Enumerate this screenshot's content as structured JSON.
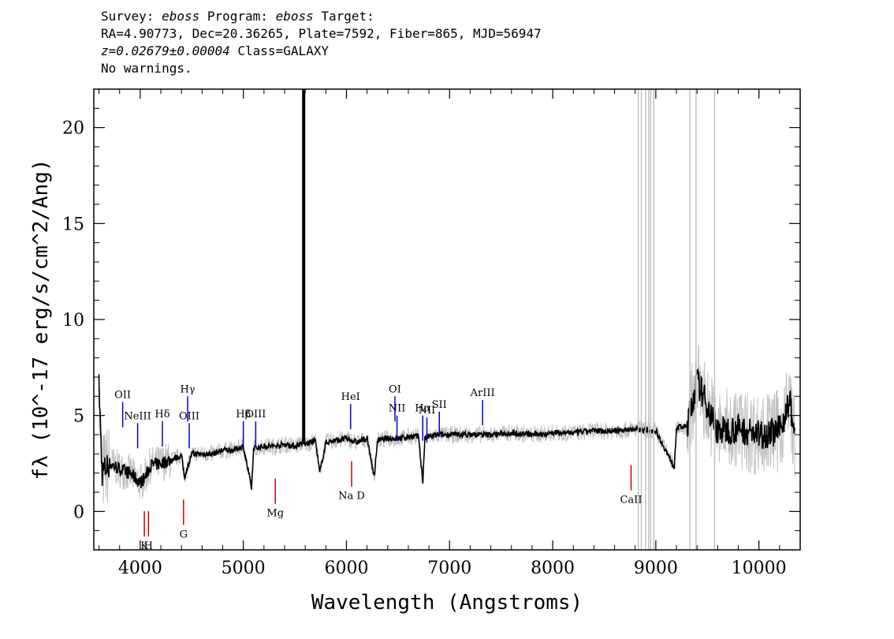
{
  "header": {
    "line1_prefix": "Survey: ",
    "survey": "eboss",
    "line1_mid": " Program: ",
    "program": "eboss",
    "line1_suffix": " Target:",
    "line2": "RA=4.90773, Dec=20.36265, Plate=7592, Fiber=865, MJD=56947",
    "redshift": "z=0.02679±0.00004",
    "class_text": " Class=GALAXY",
    "line4": "No warnings."
  },
  "colors": {
    "data": "#000000",
    "error_band": "#c0c0c0",
    "emission": "#0000cc",
    "absorption": "#cc0000"
  },
  "chart_data": {
    "type": "line",
    "xlabel": "Wavelength (Angstroms)",
    "ylabel": "fλ (10^-17 erg/s/cm^2/Ang)",
    "xlim": [
      3550,
      10400
    ],
    "ylim": [
      -2,
      22
    ],
    "x_ticks": [
      4000,
      5000,
      6000,
      7000,
      8000,
      9000,
      10000
    ],
    "y_ticks": [
      0,
      5,
      10,
      15,
      20
    ],
    "series": [
      {
        "role": "flux",
        "x": [
          3600,
          3630,
          3700,
          3800,
          3900,
          4000,
          4050,
          4100,
          4200,
          4300,
          4400,
          4430,
          4500,
          4600,
          4700,
          4800,
          4900,
          5000,
          5080,
          5100,
          5200,
          5300,
          5400,
          5500,
          5580,
          5600,
          5700,
          5740,
          5800,
          5900,
          6000,
          6100,
          6200,
          6270,
          6300,
          6400,
          6500,
          6600,
          6700,
          6740,
          6760,
          6800,
          6900,
          7000,
          7200,
          7400,
          7600,
          7800,
          8000,
          8200,
          8400,
          8600,
          8800,
          9000,
          9180,
          9200,
          9300,
          9400,
          9600,
          9800,
          10000,
          10200,
          10300,
          10350
        ],
        "y": [
          6.5,
          2.0,
          2.5,
          2.2,
          2.0,
          1.5,
          1.8,
          2.4,
          2.5,
          2.7,
          2.9,
          1.8,
          3.0,
          3.0,
          3.0,
          3.2,
          3.2,
          3.4,
          1.2,
          3.3,
          3.4,
          3.4,
          3.5,
          3.4,
          3.6,
          3.5,
          3.7,
          2.0,
          3.6,
          3.7,
          3.8,
          3.6,
          3.8,
          1.8,
          3.7,
          3.8,
          3.8,
          3.9,
          3.9,
          1.5,
          3.8,
          3.9,
          4.0,
          4.0,
          4.0,
          4.0,
          4.1,
          4.0,
          4.1,
          4.1,
          4.2,
          4.2,
          4.3,
          4.2,
          2.3,
          4.4,
          4.4,
          6.8,
          4.2,
          4.3,
          4.0,
          4.2,
          5.8,
          3.7
        ]
      }
    ],
    "emission_lines": [
      {
        "label": "OII",
        "x": 3830,
        "y": 5.7
      },
      {
        "label": "NeIII",
        "x": 3975,
        "y": 4.6
      },
      {
        "label": "Hδ",
        "x": 4215,
        "y": 4.7
      },
      {
        "label": "Hγ",
        "x": 4460,
        "y": 6.0
      },
      {
        "label": "OIII",
        "x": 4475,
        "y": 4.6
      },
      {
        "label": "Hβ",
        "x": 5000,
        "y": 4.7
      },
      {
        "label": "OIII",
        "x": 5120,
        "y": 4.7
      },
      {
        "label": "HeI",
        "x": 6040,
        "y": 5.6
      },
      {
        "label": "OI",
        "x": 6470,
        "y": 6.0
      },
      {
        "label": "NII",
        "x": 6490,
        "y": 5.0
      },
      {
        "label": "Hα",
        "x": 6740,
        "y": 5.0
      },
      {
        "label": "SII",
        "x": 6900,
        "y": 5.2
      },
      {
        "label": "NII",
        "x": 6780,
        "y": 4.9
      },
      {
        "label": "ArIII",
        "x": 7320,
        "y": 5.8
      }
    ],
    "absorption_lines": [
      {
        "label": "K",
        "x": 4040,
        "y": -1.3
      },
      {
        "label": "H",
        "x": 4080,
        "y": -1.3
      },
      {
        "label": "G",
        "x": 4420,
        "y": -0.7
      },
      {
        "label": "Mg",
        "x": 5310,
        "y": 0.4
      },
      {
        "label": "Na D",
        "x": 6050,
        "y": 1.3
      },
      {
        "label": "CaII",
        "x": 8760,
        "y": 1.1
      }
    ]
  }
}
